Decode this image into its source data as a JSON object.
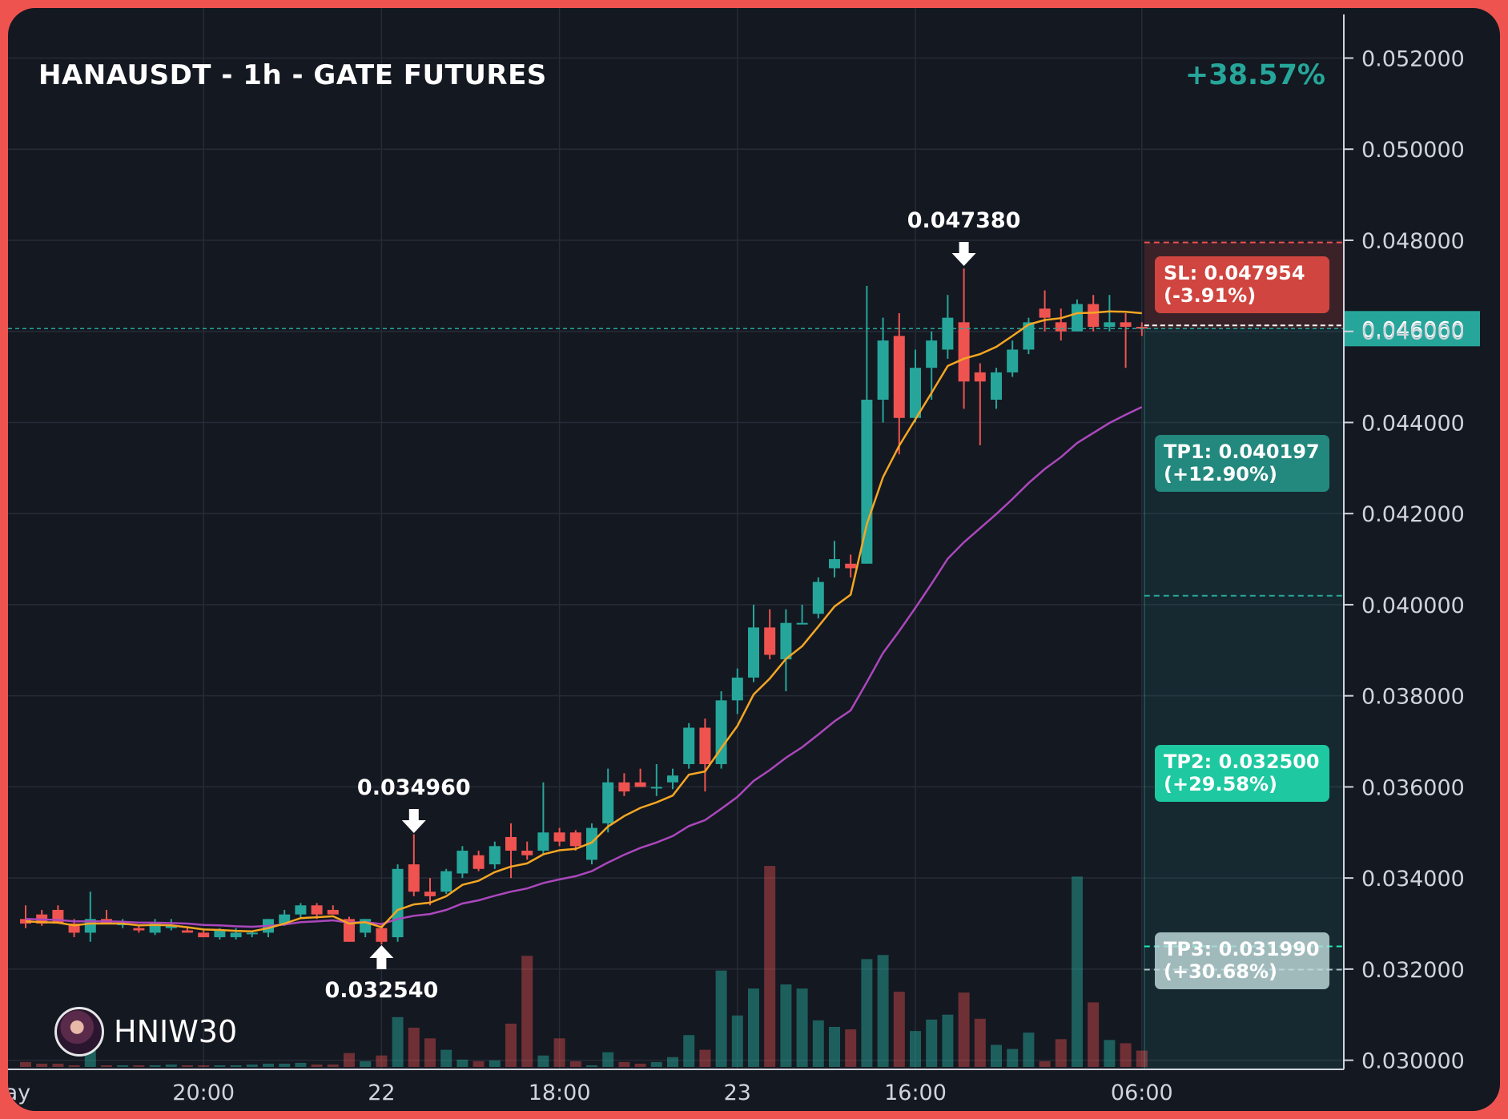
{
  "header": {
    "title": "HANAUSDT - 1h - GATE FUTURES",
    "change": "+38.57%"
  },
  "branding": {
    "name": "HNIW30",
    "avatar_icon": "avatar-icon"
  },
  "colors": {
    "background": "#141821",
    "frame": "#ef5350",
    "bull": "#26a69a",
    "bear": "#ef5350",
    "ema_fast": "#f5a623",
    "ema_slow": "#ab47bc",
    "grid": "#262b36",
    "axis_text": "#d1d4dc"
  },
  "chart_data": {
    "type": "candlestick",
    "title": "HANAUSDT - 1h - GATE FUTURES",
    "ylim": [
      0.0298,
      0.0528
    ],
    "y_ticks": [
      "0.052000",
      "0.050000",
      "0.048000",
      "0.046000",
      "0.044000",
      "0.042000",
      "0.040000",
      "0.038000",
      "0.036000",
      "0.034000",
      "0.032000",
      "0.030000"
    ],
    "x_tick_labels": [
      {
        "label": "ay",
        "bar": -0.5
      },
      {
        "label": "20:00",
        "bar": 11
      },
      {
        "label": "22",
        "bar": 22
      },
      {
        "label": "18:00",
        "bar": 33
      },
      {
        "label": "23",
        "bar": 44
      },
      {
        "label": "16:00",
        "bar": 55
      },
      {
        "label": "06:00",
        "bar": 69
      }
    ],
    "grid": true,
    "current_price": "0.046060",
    "candles": [
      {
        "o": 0.0331,
        "h": 0.0334,
        "l": 0.0329,
        "c": 0.033
      },
      {
        "o": 0.0332,
        "h": 0.0333,
        "l": 0.03295,
        "c": 0.033
      },
      {
        "o": 0.0333,
        "h": 0.0334,
        "l": 0.033,
        "c": 0.033
      },
      {
        "o": 0.033,
        "h": 0.0331,
        "l": 0.0327,
        "c": 0.0328
      },
      {
        "o": 0.0328,
        "h": 0.0337,
        "l": 0.0326,
        "c": 0.0331
      },
      {
        "o": 0.0331,
        "h": 0.0333,
        "l": 0.033,
        "c": 0.033
      },
      {
        "o": 0.033,
        "h": 0.0331,
        "l": 0.0329,
        "c": 0.033
      },
      {
        "o": 0.0329,
        "h": 0.03295,
        "l": 0.0328,
        "c": 0.03285
      },
      {
        "o": 0.0328,
        "h": 0.0331,
        "l": 0.03275,
        "c": 0.033
      },
      {
        "o": 0.0329,
        "h": 0.0331,
        "l": 0.03285,
        "c": 0.03295
      },
      {
        "o": 0.03285,
        "h": 0.0329,
        "l": 0.0328,
        "c": 0.0328
      },
      {
        "o": 0.0328,
        "h": 0.03285,
        "l": 0.0327,
        "c": 0.0327
      },
      {
        "o": 0.0327,
        "h": 0.0329,
        "l": 0.03265,
        "c": 0.03285
      },
      {
        "o": 0.0327,
        "h": 0.0329,
        "l": 0.03265,
        "c": 0.0328
      },
      {
        "o": 0.0328,
        "h": 0.03285,
        "l": 0.0327,
        "c": 0.0328
      },
      {
        "o": 0.0328,
        "h": 0.0331,
        "l": 0.0327,
        "c": 0.0331
      },
      {
        "o": 0.033,
        "h": 0.0333,
        "l": 0.03295,
        "c": 0.0332
      },
      {
        "o": 0.0332,
        "h": 0.03345,
        "l": 0.0331,
        "c": 0.0334
      },
      {
        "o": 0.0334,
        "h": 0.03345,
        "l": 0.0331,
        "c": 0.0332
      },
      {
        "o": 0.0333,
        "h": 0.0334,
        "l": 0.0332,
        "c": 0.0332
      },
      {
        "o": 0.0331,
        "h": 0.03315,
        "l": 0.0326,
        "c": 0.0326
      },
      {
        "o": 0.0328,
        "h": 0.0331,
        "l": 0.0327,
        "c": 0.0331
      },
      {
        "o": 0.0329,
        "h": 0.033,
        "l": 0.03254,
        "c": 0.0326
      },
      {
        "o": 0.0327,
        "h": 0.0343,
        "l": 0.0326,
        "c": 0.0342
      },
      {
        "o": 0.0343,
        "h": 0.03496,
        "l": 0.0336,
        "c": 0.0337
      },
      {
        "o": 0.0337,
        "h": 0.034,
        "l": 0.0334,
        "c": 0.0336
      },
      {
        "o": 0.0337,
        "h": 0.0342,
        "l": 0.03365,
        "c": 0.03415
      },
      {
        "o": 0.0341,
        "h": 0.0347,
        "l": 0.034,
        "c": 0.0346
      },
      {
        "o": 0.0345,
        "h": 0.0346,
        "l": 0.03415,
        "c": 0.0342
      },
      {
        "o": 0.0343,
        "h": 0.0348,
        "l": 0.0342,
        "c": 0.0347
      },
      {
        "o": 0.0349,
        "h": 0.0352,
        "l": 0.034,
        "c": 0.0346
      },
      {
        "o": 0.0346,
        "h": 0.0348,
        "l": 0.0344,
        "c": 0.0345
      },
      {
        "o": 0.0346,
        "h": 0.0361,
        "l": 0.0345,
        "c": 0.035
      },
      {
        "o": 0.035,
        "h": 0.0351,
        "l": 0.0347,
        "c": 0.0348
      },
      {
        "o": 0.035,
        "h": 0.03505,
        "l": 0.0346,
        "c": 0.0347
      },
      {
        "o": 0.0344,
        "h": 0.0352,
        "l": 0.0343,
        "c": 0.0351
      },
      {
        "o": 0.0352,
        "h": 0.0364,
        "l": 0.035,
        "c": 0.0361
      },
      {
        "o": 0.0361,
        "h": 0.0363,
        "l": 0.0358,
        "c": 0.0359
      },
      {
        "o": 0.0361,
        "h": 0.0364,
        "l": 0.036,
        "c": 0.036
      },
      {
        "o": 0.036,
        "h": 0.0365,
        "l": 0.0358,
        "c": 0.036
      },
      {
        "o": 0.0361,
        "h": 0.0364,
        "l": 0.03595,
        "c": 0.03625
      },
      {
        "o": 0.0365,
        "h": 0.0374,
        "l": 0.0364,
        "c": 0.0373
      },
      {
        "o": 0.0373,
        "h": 0.0375,
        "l": 0.0359,
        "c": 0.0365
      },
      {
        "o": 0.0365,
        "h": 0.0381,
        "l": 0.0364,
        "c": 0.0379
      },
      {
        "o": 0.0379,
        "h": 0.0386,
        "l": 0.0376,
        "c": 0.0384
      },
      {
        "o": 0.0384,
        "h": 0.04,
        "l": 0.0383,
        "c": 0.0395
      },
      {
        "o": 0.0395,
        "h": 0.0399,
        "l": 0.0388,
        "c": 0.0389
      },
      {
        "o": 0.0388,
        "h": 0.0399,
        "l": 0.0381,
        "c": 0.0396
      },
      {
        "o": 0.0396,
        "h": 0.04,
        "l": 0.0396,
        "c": 0.0396
      },
      {
        "o": 0.0398,
        "h": 0.0406,
        "l": 0.0397,
        "c": 0.0405
      },
      {
        "o": 0.0408,
        "h": 0.0414,
        "l": 0.0406,
        "c": 0.041
      },
      {
        "o": 0.0409,
        "h": 0.0411,
        "l": 0.0406,
        "c": 0.0408
      },
      {
        "o": 0.0409,
        "h": 0.047,
        "l": 0.0409,
        "c": 0.0445
      },
      {
        "o": 0.0445,
        "h": 0.0463,
        "l": 0.044,
        "c": 0.0458
      },
      {
        "o": 0.0459,
        "h": 0.0464,
        "l": 0.0433,
        "c": 0.0441
      },
      {
        "o": 0.0441,
        "h": 0.0456,
        "l": 0.044,
        "c": 0.0452
      },
      {
        "o": 0.0452,
        "h": 0.046,
        "l": 0.0445,
        "c": 0.0458
      },
      {
        "o": 0.0456,
        "h": 0.0468,
        "l": 0.0454,
        "c": 0.0463
      },
      {
        "o": 0.0462,
        "h": 0.04738,
        "l": 0.0443,
        "c": 0.0449
      },
      {
        "o": 0.0451,
        "h": 0.0453,
        "l": 0.0435,
        "c": 0.0449
      },
      {
        "o": 0.0445,
        "h": 0.0452,
        "l": 0.0443,
        "c": 0.0451
      },
      {
        "o": 0.0451,
        "h": 0.0458,
        "l": 0.045,
        "c": 0.0456
      },
      {
        "o": 0.0456,
        "h": 0.0463,
        "l": 0.0455,
        "c": 0.0462
      },
      {
        "o": 0.0465,
        "h": 0.0469,
        "l": 0.046,
        "c": 0.0463
      },
      {
        "o": 0.0462,
        "h": 0.0465,
        "l": 0.0458,
        "c": 0.046
      },
      {
        "o": 0.046,
        "h": 0.0467,
        "l": 0.046,
        "c": 0.0466
      },
      {
        "o": 0.0466,
        "h": 0.0468,
        "l": 0.046,
        "c": 0.0461
      },
      {
        "o": 0.0461,
        "h": 0.0468,
        "l": 0.046,
        "c": 0.0462
      },
      {
        "o": 0.0462,
        "h": 0.0464,
        "l": 0.0452,
        "c": 0.0461
      },
      {
        "o": 0.0461,
        "h": 0.0462,
        "l": 0.0459,
        "c": 0.04606
      }
    ],
    "volumes": [
      0.6,
      0.4,
      0.4,
      0.2,
      2.2,
      0.2,
      0.2,
      0.2,
      0.2,
      0.3,
      0.2,
      0.2,
      0.2,
      0.2,
      0.3,
      0.4,
      0.4,
      0.5,
      0.3,
      0.3,
      1.7,
      0.7,
      1.4,
      6.1,
      4.8,
      3.5,
      2.1,
      0.9,
      0.7,
      0.8,
      5.3,
      13.6,
      1.4,
      3.5,
      0.7,
      0.2,
      1.8,
      0.6,
      0.4,
      0.6,
      1.2,
      3.9,
      2.1,
      11.8,
      6.3,
      9.6,
      24.6,
      10.1,
      9.6,
      5.7,
      4.9,
      4.6,
      13.2,
      13.7,
      9.2,
      4.4,
      5.8,
      6.4,
      9.1,
      5.9,
      2.7,
      2.2,
      4.2,
      0.7,
      3.4,
      23.3,
      7.9,
      3.3,
      2.9,
      2.0
    ],
    "ema_fast": [
      0.03305,
      0.03303,
      0.03302,
      0.03296,
      0.033,
      0.033,
      0.033,
      0.03296,
      0.03297,
      0.03296,
      0.03292,
      0.03287,
      0.03286,
      0.03284,
      0.03283,
      0.0329,
      0.033,
      0.03312,
      0.03314,
      0.03316,
      0.033,
      0.03303,
      0.03292,
      0.0333,
      0.03342,
      0.03346,
      0.0336,
      0.03385,
      0.03394,
      0.03413,
      0.03425,
      0.03432,
      0.03452,
      0.03461,
      0.03464,
      0.03478,
      0.03513,
      0.03536,
      0.03554,
      0.03566,
      0.03581,
      0.03627,
      0.03634,
      0.03685,
      0.03734,
      0.03803,
      0.03838,
      0.03881,
      0.03909,
      0.03952,
      0.03996,
      0.04022,
      0.04177,
      0.0428,
      0.04349,
      0.04407,
      0.04465,
      0.04524,
      0.0454,
      0.0455,
      0.04566,
      0.0459,
      0.04615,
      0.04625,
      0.04629,
      0.0464,
      0.04641,
      0.04644,
      0.04643,
      0.0464
    ],
    "ema_slow": [
      0.0331,
      0.03309,
      0.03308,
      0.03305,
      0.03305,
      0.03305,
      0.03304,
      0.03302,
      0.03302,
      0.03301,
      0.033,
      0.03297,
      0.03296,
      0.03294,
      0.03293,
      0.03295,
      0.03298,
      0.03303,
      0.03305,
      0.03307,
      0.03302,
      0.03303,
      0.03299,
      0.0331,
      0.03317,
      0.03321,
      0.0333,
      0.03344,
      0.03351,
      0.03361,
      0.0337,
      0.03377,
      0.03389,
      0.03397,
      0.03404,
      0.03415,
      0.03434,
      0.03451,
      0.03466,
      0.03478,
      0.03492,
      0.03514,
      0.03527,
      0.03552,
      0.03578,
      0.03613,
      0.03637,
      0.03664,
      0.03687,
      0.03715,
      0.03744,
      0.03768,
      0.0383,
      0.03894,
      0.03942,
      0.03993,
      0.04046,
      0.04101,
      0.04137,
      0.04168,
      0.04199,
      0.04232,
      0.04267,
      0.04298,
      0.04324,
      0.04355,
      0.04377,
      0.04399,
      0.04417,
      0.04434
    ]
  },
  "annotations": {
    "high_left": "0.034960",
    "low_left": "0.032540",
    "high_right": "0.047380"
  },
  "levels": {
    "sl": {
      "line1": "SL: 0.047954",
      "line2": "(-3.91%)",
      "price": 0.047954
    },
    "tp1": {
      "line1": "TP1: 0.040197",
      "line2": "(+12.90%)",
      "price": 0.040197
    },
    "tp2": {
      "line1": "TP2: 0.032500",
      "line2": "(+29.58%)",
      "price": 0.0325
    },
    "tp3": {
      "line1": "TP3: 0.031990",
      "line2": "(+30.68%)",
      "price": 0.03199
    }
  }
}
